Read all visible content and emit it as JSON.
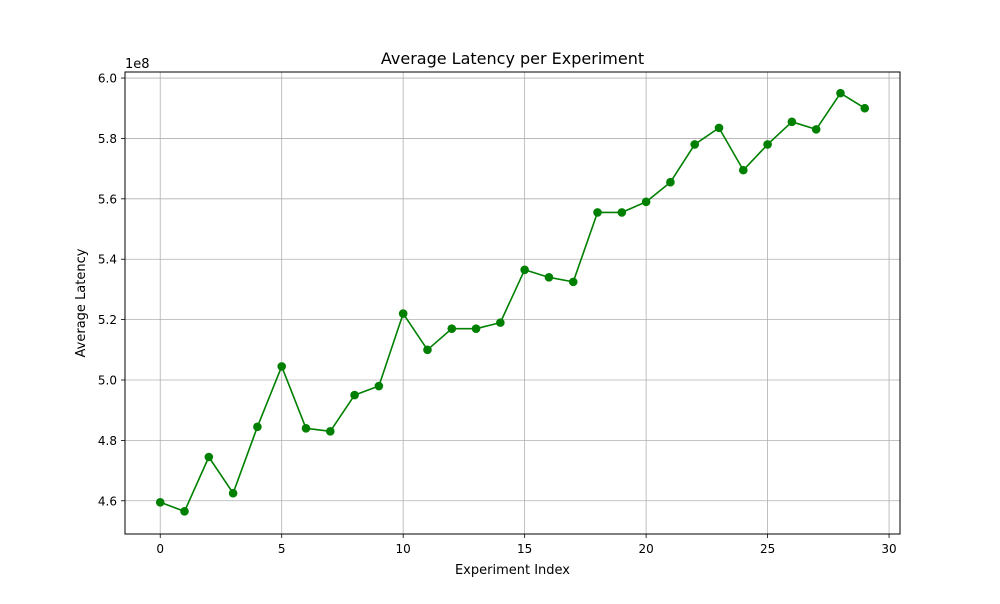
{
  "colors": {
    "line": "#008000",
    "grid": "#b0b0b0",
    "axis": "#000000"
  },
  "chart_data": {
    "type": "line",
    "title": "Average Latency per Experiment",
    "xlabel": "Experiment Index",
    "ylabel": "Average Latency",
    "y_offset_label": "1e8",
    "y_scale_factor": 100000000,
    "xlim": [
      -1.45,
      30.45
    ],
    "ylim": [
      4.49,
      6.02
    ],
    "x_ticks": [
      0,
      5,
      10,
      15,
      20,
      25,
      30
    ],
    "x_tick_labels": [
      "0",
      "5",
      "10",
      "15",
      "20",
      "25",
      "30"
    ],
    "y_ticks": [
      4.6,
      4.8,
      5.0,
      5.2,
      5.4,
      5.6,
      5.8,
      6.0
    ],
    "y_tick_labels": [
      "4.6",
      "4.8",
      "5.0",
      "5.2",
      "5.4",
      "5.6",
      "5.8",
      "6.0"
    ],
    "grid": true,
    "marker": "circle",
    "series": [
      {
        "x": [
          0,
          1,
          2,
          3,
          4,
          5,
          6,
          7,
          8,
          9,
          10,
          11,
          12,
          13,
          14,
          15,
          16,
          17,
          18,
          19,
          20,
          21,
          22,
          23,
          24,
          25,
          26,
          27,
          28,
          29
        ],
        "values": [
          4.595,
          4.565,
          4.745,
          4.625,
          4.845,
          5.045,
          4.84,
          4.83,
          4.95,
          4.98,
          5.22,
          5.1,
          5.17,
          5.17,
          5.19,
          5.365,
          5.34,
          5.325,
          5.555,
          5.555,
          5.59,
          5.655,
          5.78,
          5.835,
          5.695,
          5.78,
          5.855,
          5.83,
          5.95,
          5.9
        ]
      }
    ]
  }
}
